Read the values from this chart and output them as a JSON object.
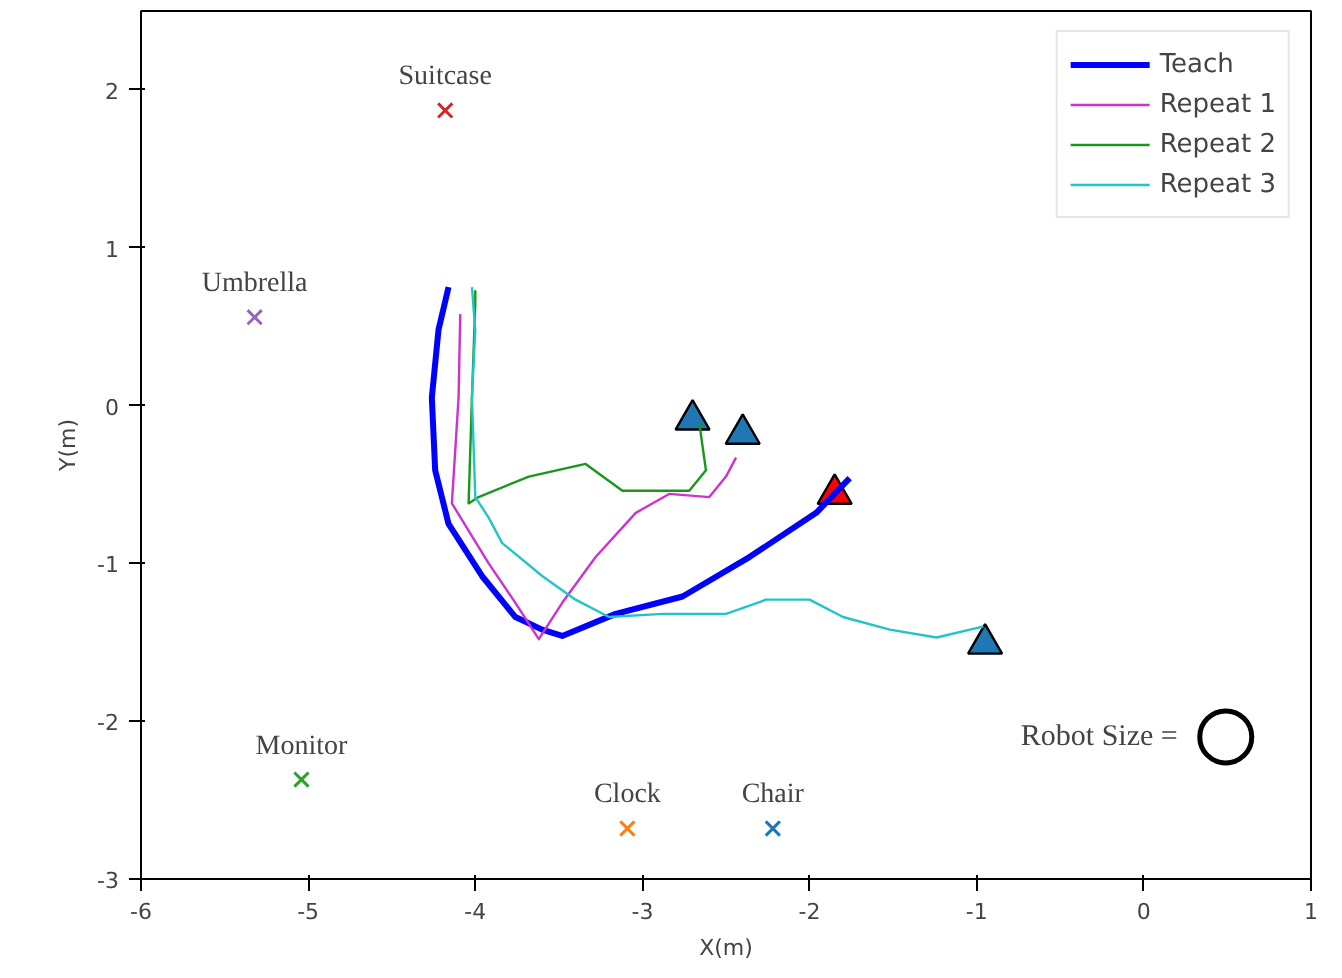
{
  "chart_data": {
    "type": "line",
    "xlabel": "X(m)",
    "ylabel": "Y(m)",
    "xlim": [
      -6,
      1
    ],
    "ylim": [
      -3,
      2.5
    ],
    "xticks": [
      -6,
      -5,
      -4,
      -3,
      -2,
      -1,
      0,
      1
    ],
    "yticks": [
      -3,
      -2,
      -1,
      0,
      1,
      2
    ],
    "grid": false,
    "legend": "top right",
    "series": [
      {
        "name": "Teach",
        "color": "#0000ff",
        "x": [
          -4.16,
          -4.22,
          -4.26,
          -4.24,
          -4.16,
          -3.96,
          -3.76,
          -3.6,
          -3.48,
          -3.16,
          -2.76,
          -2.36,
          -1.96,
          -1.76
        ],
        "values": [
          0.75,
          0.48,
          0.05,
          -0.41,
          -0.75,
          -1.08,
          -1.34,
          -1.42,
          -1.46,
          -1.32,
          -1.21,
          -0.96,
          -0.68,
          -0.46
        ]
      },
      {
        "name": "Repeat 1",
        "color": "#cc33cc",
        "x": [
          -4.09,
          -4.1,
          -4.14,
          -3.92,
          -3.76,
          -3.62,
          -3.48,
          -3.28,
          -3.04,
          -2.84,
          -2.6,
          -2.5,
          -2.44
        ],
        "values": [
          0.58,
          0.05,
          -0.62,
          -1.0,
          -1.25,
          -1.48,
          -1.25,
          -0.96,
          -0.68,
          -0.56,
          -0.58,
          -0.45,
          -0.33
        ]
      },
      {
        "name": "Repeat 2",
        "color": "#1a961a",
        "x": [
          -4.0,
          -4.0,
          -4.02,
          -4.04,
          -3.98,
          -3.68,
          -3.34,
          -3.12,
          -2.72,
          -2.62,
          -2.66
        ],
        "values": [
          0.73,
          0.65,
          0.05,
          -0.62,
          -0.58,
          -0.45,
          -0.37,
          -0.54,
          -0.54,
          -0.41,
          -0.11
        ]
      },
      {
        "name": "Repeat 3",
        "color": "#22c4c8",
        "x": [
          -4.02,
          -4.0,
          -4.02,
          -4.0,
          -3.92,
          -3.84,
          -3.6,
          -3.4,
          -3.2,
          -2.88,
          -2.5,
          -2.26,
          -2.14,
          -2.0,
          -1.8,
          -1.52,
          -1.24,
          -1.04,
          -0.96
        ],
        "values": [
          0.75,
          0.48,
          0.05,
          -0.58,
          -0.71,
          -0.87,
          -1.08,
          -1.23,
          -1.34,
          -1.32,
          -1.32,
          -1.23,
          -1.23,
          -1.23,
          -1.34,
          -1.42,
          -1.47,
          -1.42,
          -1.4
        ]
      },
      {
        "type": "scatter",
        "marker": "cross",
        "x": [
          -4.18,
          -5.32,
          -5.04,
          -3.09,
          -2.22
        ],
        "values": [
          1.87,
          0.56,
          -2.37,
          -2.68,
          -2.68
        ],
        "colors": [
          "#d62728",
          "#9467bd",
          "#2ca02c",
          "#ff7f0e",
          "#1f77b4"
        ]
      },
      {
        "type": "scatter",
        "marker": "triangle",
        "x": [
          -2.7,
          -2.4,
          -1.85,
          -0.95
        ],
        "values": [
          -0.09,
          -0.18,
          -0.56,
          -1.51
        ],
        "colors": [
          "#1f77b4",
          "#1f77b4",
          "#ff0000",
          "#1f77b4"
        ]
      },
      {
        "type": "scatter",
        "marker": "circle",
        "x": [
          0.49
        ],
        "values": [
          -2.1
        ],
        "color": "#000000"
      }
    ],
    "annotations": [
      {
        "text": "Suitcase",
        "x": -4.18,
        "y": 1.87
      },
      {
        "text": "Umbrella",
        "x": -5.32,
        "y": 0.56
      },
      {
        "text": "Monitor",
        "x": -5.04,
        "y": -2.37
      },
      {
        "text": "Clock",
        "x": -3.09,
        "y": -2.68
      },
      {
        "text": "Chair",
        "x": -2.22,
        "y": -2.68
      },
      "Robot Size ="
    ]
  }
}
